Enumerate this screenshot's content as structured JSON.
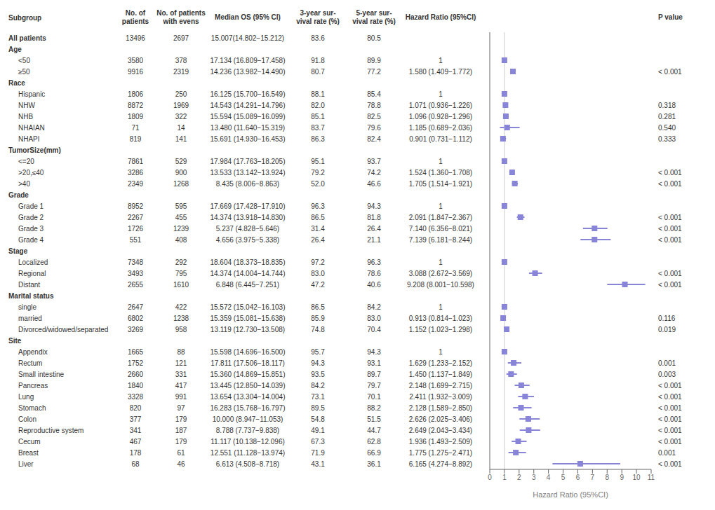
{
  "chart_data": {
    "type": "forest",
    "xlabel": "Hazard Ratio (95%CI)",
    "color": "#8884d8",
    "reference_line": 1,
    "xlim": [
      0,
      11
    ],
    "xticks": [
      0,
      1,
      2,
      3,
      4,
      5,
      6,
      7,
      8,
      9,
      10,
      11
    ],
    "categories": [
      "All patients",
      "Age",
      "<50",
      "≥50",
      "Race",
      "Hispanic",
      "NHW",
      "NHB",
      "NHAIAN",
      "NHAPI",
      "TumorSize(mm)",
      "<=20",
      ">20,≤40",
      ">40",
      "Grade",
      "Grade 1",
      "Grade 2",
      "Grade 3",
      "Grade 4",
      "Stage",
      "Localized",
      "Regional",
      "Distant",
      "Marital status",
      "single",
      "married",
      "Divorced/widowed/separated",
      "Site",
      "Appendix",
      "Rectum",
      "Small intestine",
      "Pancreas",
      "Lung",
      "Stomach",
      "Colon",
      "Reproductive system",
      "Cecum",
      "Breast",
      "Liver"
    ],
    "values": [
      null,
      null,
      1,
      1.58,
      null,
      1,
      1.071,
      1.096,
      1.185,
      0.901,
      null,
      1,
      1.524,
      1.705,
      null,
      1,
      2.091,
      7.14,
      7.139,
      null,
      1,
      3.088,
      9.208,
      null,
      1,
      0.913,
      1.152,
      null,
      1,
      1.629,
      1.45,
      2.148,
      2.411,
      2.128,
      2.626,
      2.649,
      1.936,
      1.775,
      6.165
    ],
    "lo": [
      null,
      null,
      1,
      1.409,
      null,
      1,
      0.936,
      0.928,
      0.689,
      0.731,
      null,
      1,
      1.36,
      1.514,
      null,
      1,
      1.847,
      6.356,
      6.181,
      null,
      1,
      2.672,
      8.001,
      null,
      1,
      0.814,
      1.023,
      null,
      1,
      1.233,
      1.137,
      1.699,
      1.932,
      1.589,
      2.025,
      2.043,
      1.493,
      1.275,
      4.274
    ],
    "hi": [
      null,
      null,
      1,
      1.772,
      null,
      1,
      1.226,
      1.296,
      2.036,
      1.112,
      null,
      1,
      1.708,
      1.921,
      null,
      1,
      2.367,
      8.021,
      8.244,
      null,
      1,
      3.569,
      10.598,
      null,
      1,
      1.023,
      1.298,
      null,
      1,
      2.152,
      1.849,
      2.715,
      3.009,
      2.85,
      3.406,
      3.434,
      2.509,
      2.471,
      8.892
    ],
    "table": {
      "subgroup_header": "Subgroup",
      "columns": [
        {
          "header": "No. of\npatients",
          "values": [
            "13496",
            null,
            "3580",
            "9916",
            null,
            "1806",
            "8872",
            "1809",
            "71",
            "819",
            null,
            "7861",
            "3286",
            "2349",
            null,
            "8952",
            "2267",
            "1726",
            "551",
            null,
            "7348",
            "3493",
            "2655",
            null,
            "2647",
            "6802",
            "3269",
            null,
            "1665",
            "1752",
            "2660",
            "1840",
            "3328",
            "820",
            "377",
            "341",
            "467",
            "178",
            "68"
          ]
        },
        {
          "header": "No. of patients\nwith evens",
          "values": [
            "2697",
            null,
            "378",
            "2319",
            null,
            "250",
            "1969",
            "322",
            "14",
            "141",
            null,
            "529",
            "900",
            "1268",
            null,
            "595",
            "455",
            "1239",
            "408",
            null,
            "292",
            "795",
            "1610",
            null,
            "422",
            "1238",
            "958",
            null,
            "88",
            "121",
            "331",
            "417",
            "991",
            "97",
            "179",
            "187",
            "179",
            "61",
            "46"
          ]
        },
        {
          "header": "Median OS (95% CI)",
          "values": [
            "15.007(14.802−15.212)",
            null,
            "17.134 (16.809−17.458)",
            "14.236 (13.982−14.490)",
            null,
            "16.125 (15.700−16.549)",
            "14.543 (14.291−14.796)",
            "15.594 (15.089−16.099)",
            "13.480 (11.640−15.319)",
            "15.691 (14.930−16.453)",
            null,
            "17.984 (17.763−18.205)",
            "13.533 (13.142−13.924)",
            "8.435 (8.006−8.863)",
            null,
            "17.669 (17.428−17.910)",
            "14.374 (13.918−14.830)",
            "5.237 (4.828−5.646)",
            "4.656 (3.975−5.338)",
            null,
            "18.604 (18.373−18.835)",
            "14.374 (14.004−14.744)",
            "6.848 (6.445−7.251)",
            null,
            "15.572 (15.042−16.103)",
            "15.359 (15.081−15.638)",
            "13.119 (12.730−13.508)",
            null,
            "15.598 (14.696−16.500)",
            "17.811 (17.506−18.117)",
            "15.360 (14.869−15.851)",
            "13.445 (12.850−14.039)",
            "13.654 (13.304−14.004)",
            "16.283 (15.768−16.797)",
            "10.000 (8.947−11.053)",
            "8.788 (7.737−9.838)",
            "11.117 (10.138−12.096)",
            "12.551 (11.128−13.974)",
            "6.613 (4.508−8.718)"
          ]
        },
        {
          "header": "3-year sur-\nvival rate (%)",
          "values": [
            "83.6",
            null,
            "91.8",
            "80.7",
            null,
            "88.1",
            "82.0",
            "85.1",
            "83.7",
            "86.3",
            null,
            "95.1",
            "79.2",
            "52.0",
            null,
            "96.3",
            "86.5",
            "31.4",
            "26.4",
            null,
            "97.2",
            "83.0",
            "47.2",
            null,
            "86.5",
            "85.9",
            "74.8",
            null,
            "95.7",
            "94.3",
            "93.5",
            "84.2",
            "73.1",
            "89.5",
            "54.8",
            "49.1",
            "67.3",
            "71.9",
            "43.1"
          ]
        },
        {
          "header": "5-year sur-\nvival rate (%)",
          "values": [
            "80.5",
            null,
            "89.9",
            "77.2",
            null,
            "85.4",
            "78.8",
            "82.5",
            "79.6",
            "82.4",
            null,
            "93.7",
            "74.2",
            "46.6",
            null,
            "94.3",
            "81.8",
            "26.4",
            "21.1",
            null,
            "96.3",
            "78.6",
            "40.6",
            null,
            "84.2",
            "83.0",
            "70.4",
            null,
            "94.3",
            "93.1",
            "89.7",
            "79.7",
            "70.1",
            "88.2",
            "51.5",
            "44.7",
            "62.8",
            "66.9",
            "36.1"
          ]
        },
        {
          "header": "Hazard Ratio (95%CI)",
          "values": [
            null,
            null,
            "1",
            "1.580 (1.409−1.772)",
            null,
            "1",
            "1.071 (0.936−1.226)",
            "1.096 (0.928−1.296)",
            "1.185 (0.689−2.036)",
            "0.901 (0.731−1.112)",
            null,
            "1",
            "1.524 (1.360−1.708)",
            "1.705 (1.514−1.921)",
            null,
            "1",
            "2.091 (1.847−2.367)",
            "7.140 (6.356−8.021)",
            "7.139 (6.181−8.244)",
            null,
            "1",
            "3.088 (2.672−3.569)",
            "9.208 (8.001−10.598)",
            null,
            "1",
            "0.913 (0.814−1.023)",
            "1.152 (1.023−1.298)",
            null,
            "1",
            "1.629 (1.233−2.152)",
            "1.450 (1.137−1.849)",
            "2.148 (1.699−2.715)",
            "2.411 (1.932−3.009)",
            "2.128 (1.589−2.850)",
            "2.626 (2.025−3.406)",
            "2.649 (2.043−3.434)",
            "1.936 (1.493−2.509)",
            "1.775 (1.275−2.471)",
            "6.165 (4.274−8.892)"
          ]
        },
        {
          "header": "P value",
          "values": [
            null,
            null,
            null,
            "< 0.001",
            null,
            null,
            "0.318",
            "0.281",
            "0.540",
            "0.333",
            null,
            null,
            "< 0.001",
            "< 0.001",
            null,
            null,
            "< 0.001",
            "< 0.001",
            "< 0.001",
            null,
            null,
            "< 0.001",
            "< 0.001",
            null,
            null,
            "0.116",
            "0.019",
            null,
            null,
            "0.001",
            "0.003",
            "< 0.001",
            "< 0.001",
            "< 0.001",
            "< 0.001",
            "< 0.001",
            "< 0.001",
            "0.001",
            "< 0.001"
          ]
        }
      ]
    }
  }
}
